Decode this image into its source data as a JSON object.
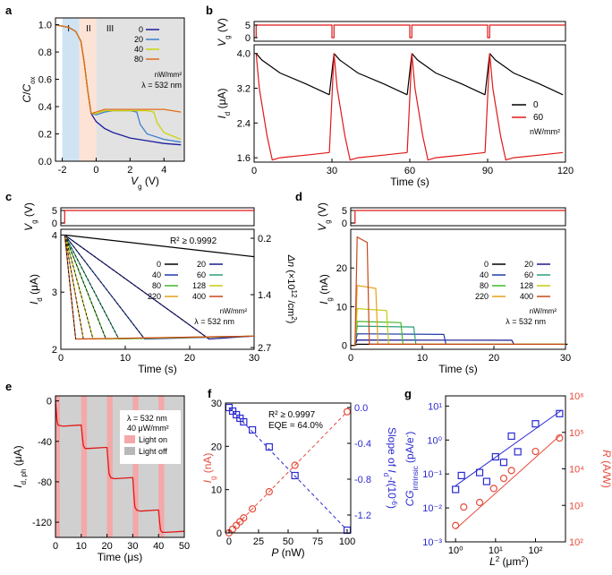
{
  "chart_data": [
    {
      "panel": "a",
      "type": "line",
      "xlabel": "V_g (V)",
      "ylabel": "C/C_ox",
      "xlim": [
        -2.4,
        5.2
      ],
      "ylim": [
        0,
        1.05
      ],
      "xticks": [
        -2,
        0,
        2,
        4
      ],
      "yticks": [
        0.0,
        0.2,
        0.4,
        0.6,
        0.8,
        1.0
      ],
      "region_labels": [
        "I",
        "II",
        "III"
      ],
      "regions": [
        {
          "label": "I",
          "x": [
            -2.0,
            -1.0
          ],
          "color": "#cfe3f3"
        },
        {
          "label": "II",
          "x": [
            -1.0,
            0.0
          ],
          "color": "#fde3d5"
        },
        {
          "label": "III",
          "x": [
            0.0,
            5.2
          ],
          "color": "#e2e2e2"
        }
      ],
      "legend": {
        "entries": [
          "0",
          "20",
          "40",
          "80"
        ],
        "units": "nW/mm²",
        "note": "λ = 532 nm",
        "placement": "top-right"
      },
      "series": [
        {
          "name": "0",
          "color": "#1c1c9e",
          "x": [
            -2.4,
            -1.6,
            -1.2,
            -0.9,
            -0.7,
            -0.5,
            -0.3,
            0,
            0.5,
            1.0,
            1.5,
            2.0,
            3.0,
            4.0,
            5.0
          ],
          "y": [
            1.0,
            0.98,
            0.95,
            0.88,
            0.72,
            0.52,
            0.35,
            0.29,
            0.24,
            0.21,
            0.19,
            0.17,
            0.15,
            0.13,
            0.12
          ]
        },
        {
          "name": "20",
          "color": "#3b7fd0",
          "x": [
            -2.4,
            -1.6,
            -1.2,
            -0.9,
            -0.7,
            -0.5,
            -0.3,
            0,
            0.5,
            1.0,
            1.5,
            2.0,
            2.4,
            2.6,
            3.0,
            4.0,
            5.0
          ],
          "y": [
            1.0,
            0.98,
            0.95,
            0.88,
            0.72,
            0.52,
            0.35,
            0.34,
            0.36,
            0.37,
            0.37,
            0.37,
            0.36,
            0.27,
            0.2,
            0.16,
            0.14
          ]
        },
        {
          "name": "40",
          "color": "#c9d40c",
          "x": [
            -2.4,
            -1.6,
            -1.2,
            -0.9,
            -0.7,
            -0.5,
            -0.3,
            0,
            0.5,
            1.0,
            2.0,
            3.0,
            3.4,
            3.6,
            4.0,
            5.0
          ],
          "y": [
            1.0,
            0.98,
            0.95,
            0.88,
            0.72,
            0.52,
            0.35,
            0.35,
            0.37,
            0.37,
            0.37,
            0.37,
            0.36,
            0.28,
            0.21,
            0.16
          ]
        },
        {
          "name": "80",
          "color": "#e06b1a",
          "x": [
            -2.4,
            -1.6,
            -1.2,
            -0.9,
            -0.7,
            -0.5,
            -0.3,
            0,
            0.5,
            1.0,
            2.0,
            3.0,
            4.0,
            5.0
          ],
          "y": [
            1.0,
            0.98,
            0.95,
            0.88,
            0.72,
            0.52,
            0.35,
            0.36,
            0.38,
            0.38,
            0.38,
            0.38,
            0.38,
            0.36
          ]
        }
      ]
    },
    {
      "panel": "b",
      "type": "line",
      "xlabel": "Time (s)",
      "ylabel": "I_d (μA)",
      "top_ylabel": "V_g (V)",
      "xlim": [
        0,
        120
      ],
      "ylim": [
        1.5,
        4.2
      ],
      "xticks": [
        0,
        30,
        60,
        90,
        120
      ],
      "yticks": [
        1.6,
        2.4,
        3.2,
        4.0
      ],
      "top_yticks": [
        0,
        5
      ],
      "legend": {
        "entries": [
          "0",
          "60"
        ],
        "units": "nW/mm²",
        "placement": "right"
      },
      "vg_pulse": {
        "period_s": 30,
        "low_width_s": 0.8,
        "high_V": 5,
        "low_V": 0
      },
      "series": [
        {
          "name": "0",
          "color": "#000000",
          "x": [
            0.8,
            3,
            10,
            20,
            29
          ],
          "y": [
            4.0,
            3.85,
            3.55,
            3.3,
            3.05
          ]
        },
        {
          "name": "60",
          "color": "#e01818",
          "x": [
            0.8,
            2,
            5,
            7,
            10,
            20,
            29
          ],
          "y": [
            4.0,
            3.2,
            2.1,
            1.55,
            1.6,
            1.66,
            1.72
          ]
        }
      ]
    },
    {
      "panel": "c",
      "type": "line",
      "xlabel": "Time (s)",
      "ylabel": "I_d (μA)",
      "top_ylabel": "V_g (V)",
      "right_ylabel": "Δn (×10¹² /cm²)",
      "xlim": [
        0,
        30
      ],
      "ylim": [
        2,
        4.1
      ],
      "xticks": [
        0,
        10,
        20,
        30
      ],
      "yticks": [
        2,
        3,
        4
      ],
      "top_yticks": [
        0,
        5
      ],
      "right_yticks": [
        "0.2",
        "1.4",
        "2.7"
      ],
      "annotation": "R² ≥ 0.9992",
      "legend": {
        "entries": [
          "0",
          "20",
          "40",
          "60",
          "80",
          "128",
          "220",
          "400"
        ],
        "units": "nW/mm²",
        "note": "λ = 532 nm",
        "placement": "right"
      },
      "series": [
        {
          "name": "0",
          "color": "#000000",
          "t_min": 999
        },
        {
          "name": "20",
          "color": "#1a1a8c",
          "t_min": 23
        },
        {
          "name": "40",
          "color": "#1e3aa8",
          "t_min": 13
        },
        {
          "name": "60",
          "color": "#2aa07a",
          "t_min": 9
        },
        {
          "name": "80",
          "color": "#44b82a",
          "t_min": 7
        },
        {
          "name": "128",
          "color": "#c4cc10",
          "t_min": 5
        },
        {
          "name": "220",
          "color": "#e8a018",
          "t_min": 3.5
        },
        {
          "name": "400",
          "color": "#c84818",
          "t_min": 2.3
        }
      ],
      "i_start": 4.0,
      "i_floor": 2.18,
      "i_end_dark": 3.62
    },
    {
      "panel": "d",
      "type": "line",
      "xlabel": "Time (s)",
      "ylabel": "I_g (nA)",
      "top_ylabel": "V_g (V)",
      "xlim": [
        0,
        30
      ],
      "ylim": [
        -1,
        30
      ],
      "xticks": [
        0,
        10,
        20,
        30
      ],
      "yticks": [
        0,
        10,
        20
      ],
      "top_yticks": [
        0,
        5
      ],
      "legend": {
        "entries": [
          "0",
          "20",
          "40",
          "60",
          "80",
          "128",
          "220",
          "400"
        ],
        "units": "nW/mm²",
        "note": "λ = 532 nm",
        "placement": "right"
      },
      "series": [
        {
          "name": "0",
          "color": "#000000",
          "level": 0.3,
          "t_end": 30
        },
        {
          "name": "20",
          "color": "#1a1a8c",
          "level": 1.4,
          "t_end": 22.5
        },
        {
          "name": "40",
          "color": "#1e3aa8",
          "level": 3.0,
          "t_end": 13
        },
        {
          "name": "60",
          "color": "#2aa07a",
          "level": 5.0,
          "t_end": 8.8
        },
        {
          "name": "80",
          "color": "#44b82a",
          "level": 6.2,
          "t_end": 7
        },
        {
          "name": "128",
          "color": "#c4cc10",
          "level": 9.5,
          "t_end": 5
        },
        {
          "name": "220",
          "color": "#e8a018",
          "level": 15.5,
          "t_end": 3.5
        },
        {
          "name": "400",
          "color": "#c84818",
          "level": 28.0,
          "t_end": 2.3
        }
      ]
    },
    {
      "panel": "e",
      "type": "line",
      "xlabel": "Time (μs)",
      "ylabel": "I_d, ph (μA)",
      "xlim": [
        0,
        50
      ],
      "ylim": [
        -135,
        5
      ],
      "xticks": [
        0,
        10,
        20,
        30,
        40,
        50
      ],
      "yticks": [
        0,
        -40,
        -80,
        -120
      ],
      "legend": {
        "note": "λ = 532 nm",
        "power": "40 μW/mm²",
        "entries": [
          "Light on",
          "Light off"
        ],
        "placement": "top-right"
      },
      "light_on_windows": [
        [
          0,
          1
        ],
        [
          10,
          11.5
        ],
        [
          20,
          21.5
        ],
        [
          30,
          31.5
        ],
        [
          40,
          41.5
        ]
      ],
      "series": [
        {
          "name": "I_d,ph",
          "color": "#e01818",
          "x": [
            0,
            0.3,
            0.6,
            1,
            3,
            9,
            10,
            10.4,
            10.8,
            11.5,
            13,
            19,
            20,
            20.4,
            20.8,
            21.5,
            23,
            29,
            30,
            30.4,
            30.8,
            31.5,
            33,
            39,
            40,
            40.4,
            40.8,
            41.5,
            43,
            50
          ],
          "y": [
            0,
            -10,
            -20,
            -24,
            -25,
            -24,
            -24,
            -35,
            -44,
            -47,
            -47,
            -46,
            -46,
            -60,
            -72,
            -76,
            -77,
            -76,
            -76,
            -92,
            -105,
            -108,
            -109,
            -108,
            -108,
            -120,
            -128,
            -130,
            -130,
            -129
          ]
        }
      ]
    },
    {
      "panel": "f",
      "type": "scatter",
      "xlabel": "P (nW)",
      "ylabel": "I_g (nA)",
      "right_ylabel": "Slope of I_d-t (10⁻⁶)",
      "xlim": [
        -3,
        103
      ],
      "ylim": [
        0,
        30
      ],
      "right_ylim": [
        -1.4,
        0.05
      ],
      "xticks": [
        0,
        25,
        50,
        75,
        100
      ],
      "yticks": [
        0,
        10,
        20,
        30
      ],
      "right_yticks": [
        "0.0",
        "-0.4",
        "-0.8",
        "-1.2"
      ],
      "annotation": [
        "R² ≥ 0.9997",
        "EQE = 64.0%"
      ],
      "series": [
        {
          "name": "I_g",
          "color": "#e84a3a",
          "marker": "circle",
          "x": [
            0,
            3.1,
            6.2,
            9.3,
            12.4,
            19.8,
            34,
            55.8,
            100
          ],
          "y": [
            0.3,
            1.4,
            3.0,
            5.0,
            6.2,
            9.5,
            15.5,
            28.0,
            28.0
          ]
        },
        {
          "name": "slope",
          "color": "#2a2ad0",
          "marker": "square",
          "axis": "right",
          "x": [
            0,
            3.1,
            6.2,
            9.3,
            12.4,
            19.8,
            34,
            55.8,
            100
          ],
          "y": [
            -0.0,
            -0.04,
            -0.08,
            -0.12,
            -0.16,
            -0.25,
            -0.44,
            -0.76,
            -1.37
          ]
        }
      ]
    },
    {
      "panel": "g",
      "type": "scatter",
      "xlabel": "L² (μm²)",
      "ylabel": "CG_intrinsic (pA/e⁻)",
      "right_ylabel": "R (A/W)",
      "xscale": "log",
      "yscale": "log",
      "xlim_log10": [
        -0.25,
        2.75
      ],
      "ylim_log10": [
        -3,
        1.3
      ],
      "right_ylim_log10": [
        2,
        6
      ],
      "xtick_labels": [
        "10⁰",
        "10¹",
        "10²"
      ],
      "ytick_labels": [
        "10⁻³",
        "10⁻²",
        "10⁻¹",
        "10⁰",
        "10¹"
      ],
      "right_ytick_labels": [
        "10²",
        "10³",
        "10⁴",
        "10⁵",
        "10⁶"
      ],
      "series": [
        {
          "name": "CG_intrinsic",
          "color": "#2a2ad0",
          "marker": "square",
          "x": [
            1,
            1.4,
            4,
            6,
            10,
            16,
            25,
            36,
            100,
            400
          ],
          "y": [
            0.035,
            0.09,
            0.11,
            0.06,
            0.32,
            0.22,
            1.3,
            0.45,
            3.0,
            6.0
          ]
        },
        {
          "name": "R",
          "color": "#e84a3a",
          "marker": "circle",
          "axis": "right",
          "x": [
            1,
            1.6,
            4,
            9,
            16,
            25,
            100,
            400
          ],
          "y": [
            280,
            900,
            1200,
            2900,
            5500,
            9000,
            30000,
            70000
          ]
        }
      ]
    }
  ]
}
